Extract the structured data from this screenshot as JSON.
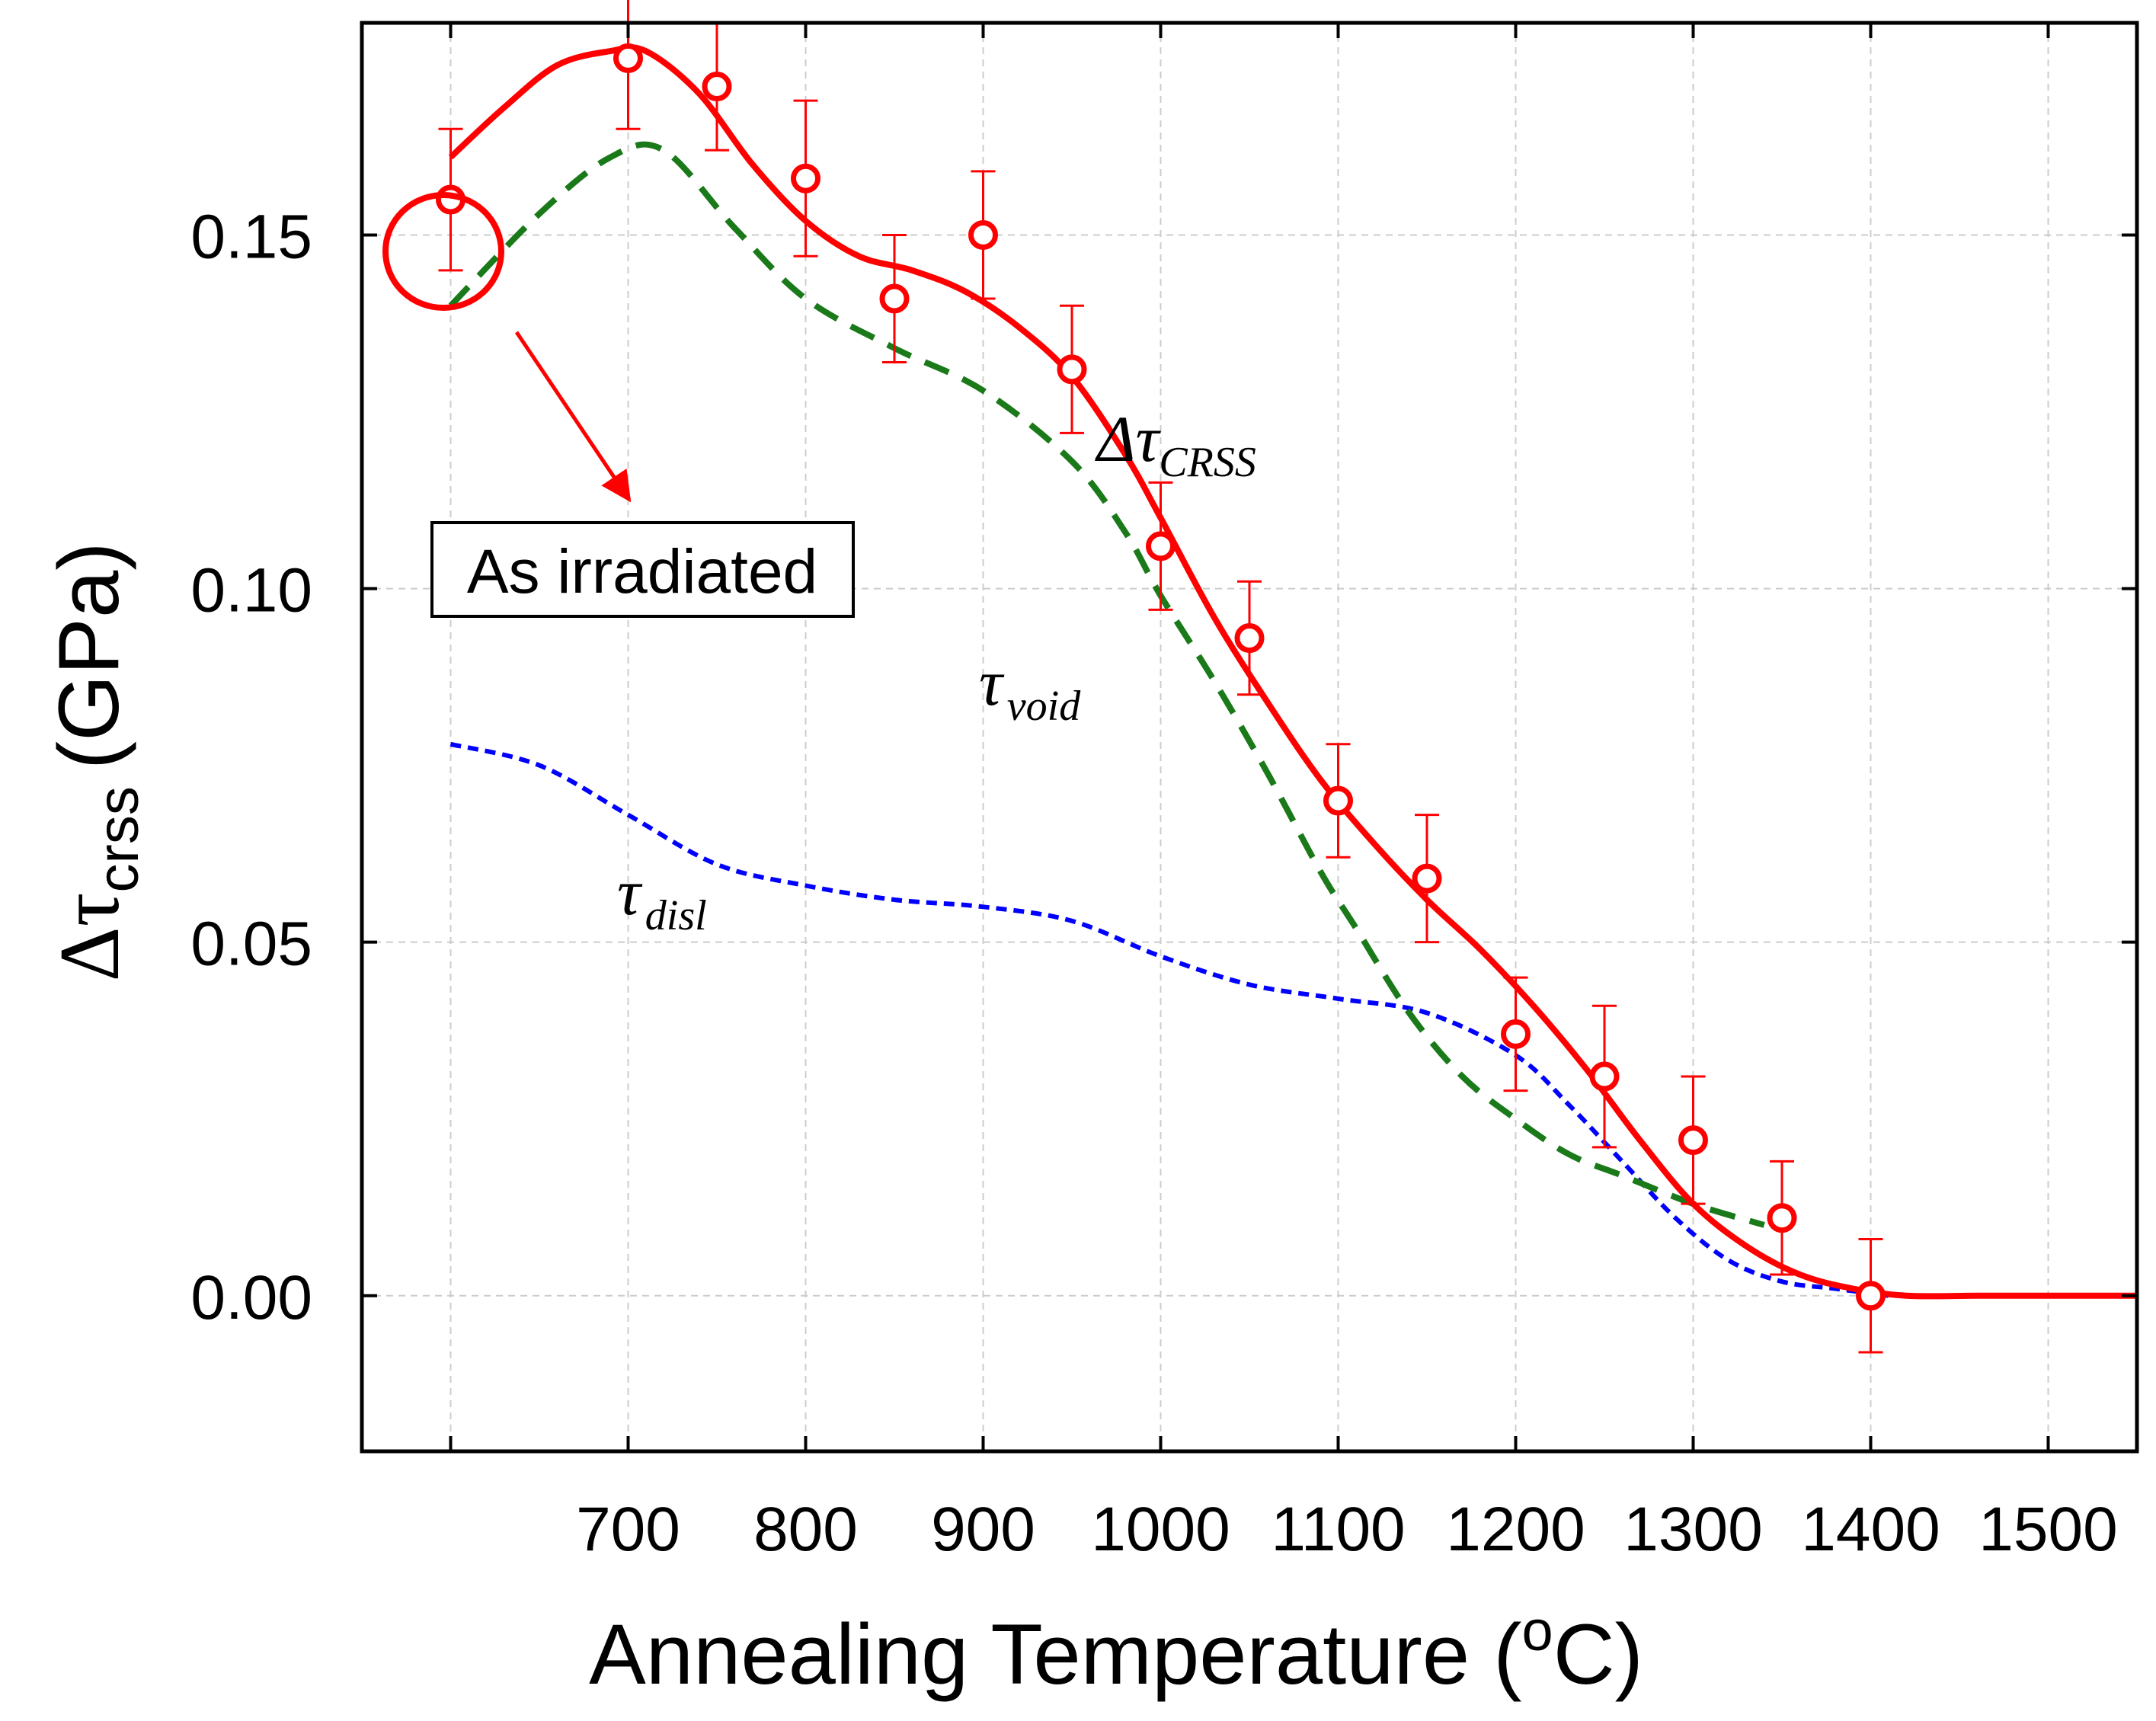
{
  "chart_data": {
    "type": "scatter",
    "xlabel": "Annealing Temperature (",
    "xlabel_sup": "o",
    "xlabel_end": "C)",
    "ylabel_delta": "Δτ",
    "ylabel_sub": "crss",
    "ylabel_unit": "(GPa)",
    "xlim": [
      550,
      1550
    ],
    "ylim": [
      -0.022,
      0.18
    ],
    "x_ticks": [
      600,
      700,
      800,
      900,
      1000,
      1100,
      1200,
      1300,
      1400,
      1500
    ],
    "x_tick_labels": [
      "700",
      "800",
      "900",
      "1000",
      "1100",
      "1200",
      "1300",
      "1400",
      "1500"
    ],
    "x_tick_label_values": [
      700,
      800,
      900,
      1000,
      1100,
      1200,
      1300,
      1400,
      1500
    ],
    "y_ticks": [
      0.0,
      0.05,
      0.1,
      0.15
    ],
    "y_tick_labels": [
      "0.00",
      "0.05",
      "0.10",
      "0.15"
    ],
    "grid": true,
    "colors": {
      "measured": "#ff0000",
      "void": "#1a7a1a",
      "disl": "#0000ff"
    },
    "measured": {
      "x": [
        600,
        700,
        750,
        800,
        850,
        900,
        950,
        1000,
        1050,
        1100,
        1150,
        1200,
        1250,
        1300,
        1350,
        1400
      ],
      "y": [
        0.155,
        0.175,
        0.171,
        0.158,
        0.141,
        0.15,
        0.131,
        0.106,
        0.093,
        0.07,
        0.059,
        0.037,
        0.031,
        0.022,
        0.011,
        0.0
      ],
      "err": [
        0.01,
        0.01,
        0.009,
        0.011,
        0.009,
        0.009,
        0.009,
        0.009,
        0.008,
        0.008,
        0.009,
        0.008,
        0.01,
        0.009,
        0.008,
        0.008
      ]
    },
    "series": [
      {
        "name": "ΔτCRSS",
        "style": "solid",
        "x": [
          600,
          630,
          660,
          690,
          710,
          740,
          770,
          800,
          830,
          860,
          890,
          920,
          950,
          980,
          1000,
          1030,
          1060,
          1090,
          1120,
          1150,
          1180,
          1210,
          1240,
          1270,
          1300,
          1330,
          1360,
          1390,
          1420,
          1460,
          1500,
          1550
        ],
        "y": [
          0.161,
          0.168,
          0.174,
          0.176,
          0.176,
          0.17,
          0.16,
          0.152,
          0.147,
          0.145,
          0.142,
          0.137,
          0.13,
          0.119,
          0.11,
          0.096,
          0.084,
          0.073,
          0.064,
          0.056,
          0.049,
          0.041,
          0.032,
          0.022,
          0.013,
          0.007,
          0.003,
          0.001,
          0.0,
          0.0,
          0.0,
          0.0
        ]
      },
      {
        "name": "τvoid",
        "style": "dashed",
        "x": [
          600,
          650,
          690,
          720,
          760,
          800,
          850,
          900,
          950,
          980,
          1000,
          1030,
          1060,
          1090,
          1110,
          1140,
          1170,
          1200,
          1230,
          1260,
          1300,
          1340
        ],
        "y": [
          0.14,
          0.153,
          0.161,
          0.162,
          0.151,
          0.141,
          0.134,
          0.128,
          0.118,
          0.108,
          0.099,
          0.087,
          0.074,
          0.06,
          0.052,
          0.04,
          0.031,
          0.025,
          0.02,
          0.017,
          0.013,
          0.01
        ]
      },
      {
        "name": "τdisl",
        "style": "dotted",
        "x": [
          600,
          650,
          700,
          750,
          800,
          850,
          900,
          950,
          1000,
          1050,
          1100,
          1150,
          1200,
          1230,
          1260,
          1290,
          1320,
          1350,
          1380,
          1410
        ],
        "y": [
          0.078,
          0.075,
          0.068,
          0.061,
          0.058,
          0.056,
          0.055,
          0.053,
          0.048,
          0.044,
          0.042,
          0.04,
          0.034,
          0.027,
          0.019,
          0.011,
          0.005,
          0.002,
          0.001,
          0.0
        ]
      }
    ],
    "annotations": {
      "as_irradiated": "As irradiated",
      "crss_delta": "Δτ",
      "crss_sub": "CRSS",
      "void_tau": "τ",
      "void_sub": "void",
      "disl_tau": "τ",
      "disl_sub": "disl"
    }
  }
}
